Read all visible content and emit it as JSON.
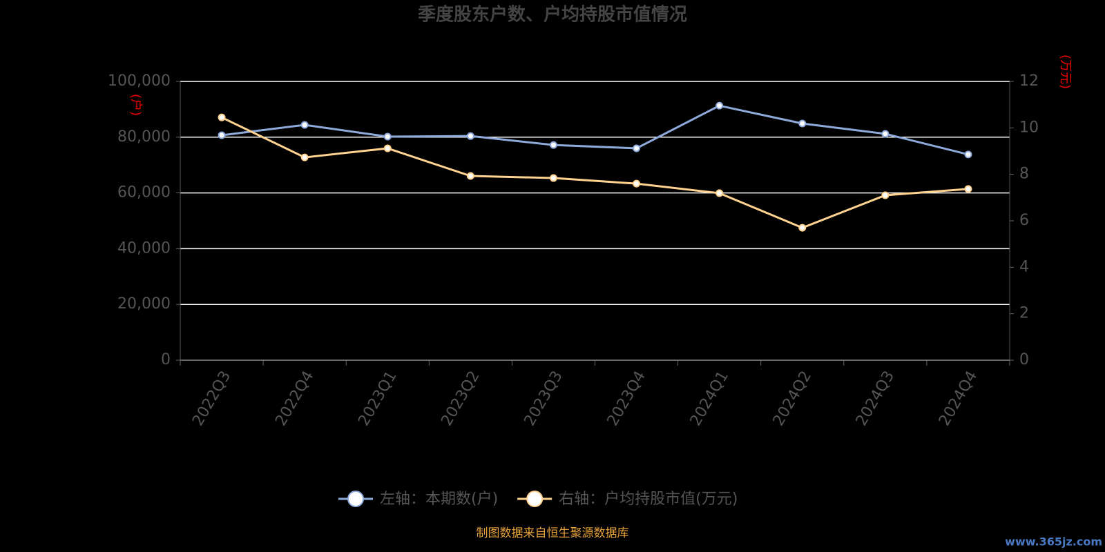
{
  "chart_data": {
    "type": "line",
    "title": "季度股东户数、户均持股市值情况",
    "y_label": "(户)",
    "y2_label": "(万元)",
    "categories": [
      "2022Q3",
      "2022Q4",
      "2023Q1",
      "2023Q2",
      "2023Q3",
      "2023Q4",
      "2024Q1",
      "2024Q2",
      "2024Q3",
      "2024Q4"
    ],
    "series": [
      {
        "name": "左轴：本期数(户)",
        "color": "#8eaadb",
        "values": [
          80700,
          84400,
          80200,
          80400,
          77200,
          76000,
          91300,
          84900,
          81200,
          73800
        ]
      },
      {
        "name": "右轴：户均持股市值(万元)",
        "color": "#ffd28f",
        "axis": "y2",
        "values": [
          10.45,
          8.73,
          9.12,
          7.93,
          7.84,
          7.6,
          7.19,
          5.7,
          7.1,
          7.37
        ]
      }
    ],
    "ylim": [
      0,
      100000
    ],
    "yticks": [
      0,
      {
        "value": 20000,
        "label": "20,000"
      },
      {
        "value": 40000,
        "label": "40,000"
      },
      {
        "value": 60000,
        "label": "60,000"
      },
      {
        "value": 80000,
        "label": "80,000"
      },
      {
        "value": 100000,
        "label": "100,000"
      }
    ],
    "y2lim": [
      0,
      12
    ],
    "y2ticks": [
      0,
      2,
      4,
      6,
      8,
      10,
      12
    ],
    "grid": true,
    "legend": "bottom",
    "source": "制图数据来自恒生聚源数据库",
    "watermark": "www.365jz.com"
  }
}
